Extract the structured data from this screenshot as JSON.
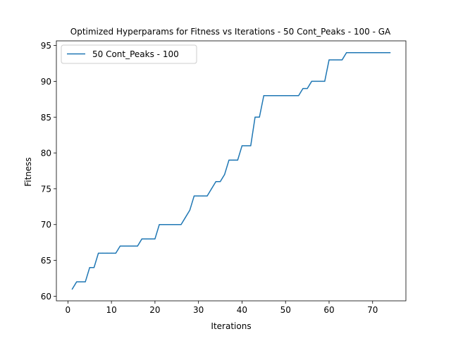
{
  "chart_data": {
    "type": "line",
    "title": "Optimized Hyperparams for Fitness vs Iterations - 50 Cont_Peaks - 100 - GA",
    "xlabel": "Iterations",
    "ylabel": "Fitness",
    "xlim": [
      -2.65,
      77.65
    ],
    "ylim": [
      59.35,
      95.65
    ],
    "xticks": [
      0,
      10,
      20,
      30,
      40,
      50,
      60,
      70
    ],
    "yticks": [
      60,
      65,
      70,
      75,
      80,
      85,
      90,
      95
    ],
    "grid": false,
    "legend": {
      "location": "upper-left",
      "entries": [
        "50 Cont_Peaks - 100"
      ]
    },
    "series": [
      {
        "name": "50 Cont_Peaks - 100",
        "color": "#1f77b4",
        "x": [
          1,
          2,
          3,
          4,
          5,
          6,
          7,
          8,
          9,
          10,
          11,
          12,
          13,
          14,
          15,
          16,
          17,
          18,
          19,
          20,
          21,
          22,
          23,
          24,
          25,
          26,
          27,
          28,
          29,
          30,
          31,
          32,
          33,
          34,
          35,
          36,
          37,
          38,
          39,
          40,
          41,
          42,
          43,
          44,
          45,
          46,
          47,
          48,
          49,
          50,
          51,
          52,
          53,
          54,
          55,
          56,
          57,
          58,
          59,
          60,
          61,
          62,
          63,
          64,
          65,
          66,
          67,
          68,
          69,
          70,
          71,
          72,
          73,
          74
        ],
        "y": [
          61,
          62,
          62,
          62,
          64,
          64,
          66,
          66,
          66,
          66,
          66,
          67,
          67,
          67,
          67,
          67,
          68,
          68,
          68,
          68,
          70,
          70,
          70,
          70,
          70,
          70,
          71,
          72,
          74,
          74,
          74,
          74,
          75,
          76,
          76,
          77,
          79,
          79,
          79,
          81,
          81,
          81,
          85,
          85,
          88,
          88,
          88,
          88,
          88,
          88,
          88,
          88,
          88,
          89,
          89,
          90,
          90,
          90,
          90,
          93,
          93,
          93,
          93,
          94,
          94,
          94,
          94,
          94,
          94,
          94,
          94,
          94,
          94,
          94
        ]
      }
    ]
  }
}
